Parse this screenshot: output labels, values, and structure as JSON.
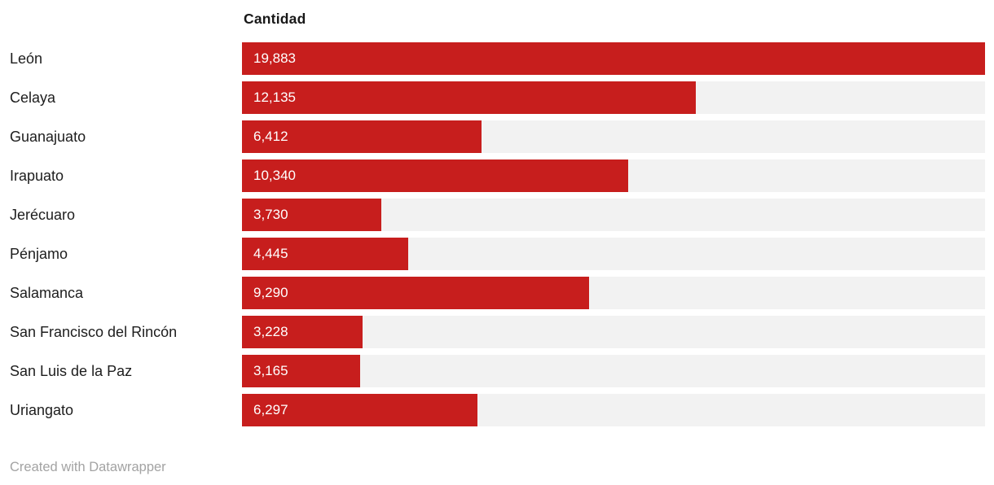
{
  "chart_data": {
    "type": "bar",
    "orientation": "horizontal",
    "column_header": "Cantidad",
    "categories": [
      "León",
      "Celaya",
      "Guanajuato",
      "Irapuato",
      "Jerécuaro",
      "Pénjamo",
      "Salamanca",
      "San Francisco del Rincón",
      "San Luis de la Paz",
      "Uriangato"
    ],
    "values": [
      19883,
      12135,
      6412,
      10340,
      3730,
      4445,
      9290,
      3228,
      3165,
      6297
    ],
    "value_labels": [
      "19,883",
      "12,135",
      "6,412",
      "10,340",
      "3,730",
      "4,445",
      "9,290",
      "3,228",
      "3,165",
      "6,297"
    ],
    "xlim": [
      0,
      19883
    ],
    "bar_color": "#c71e1d",
    "track_color": "#f2f2f2",
    "value_label_position": "inside-start",
    "legend": "none",
    "grid": "off"
  },
  "footer": {
    "attribution": "Created with Datawrapper"
  }
}
